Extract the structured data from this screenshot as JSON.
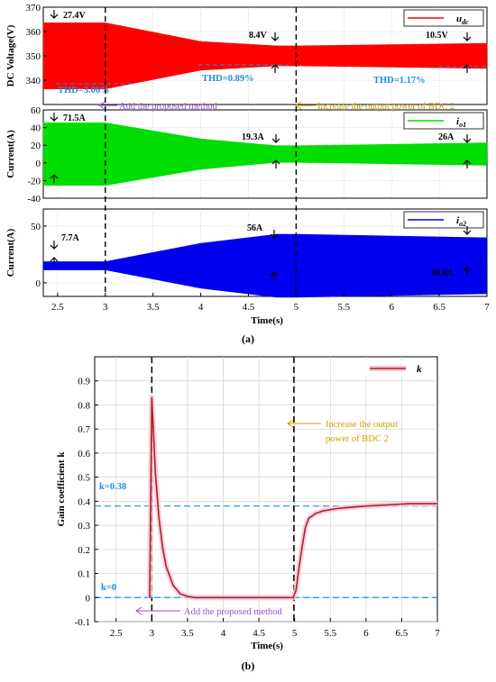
{
  "caption_a": "(a)",
  "caption_b": "(b)",
  "chart_data": [
    {
      "type": "line",
      "panel": "a-1",
      "ylabel": "DC Voltage(V)",
      "xlim": [
        2.35,
        7
      ],
      "ylim": [
        330,
        370
      ],
      "yticks": [
        340,
        350,
        360,
        370
      ],
      "legend": "u_dc",
      "legend_position": "top-right",
      "color": "#ff0000",
      "series": [
        {
          "name": "u_dc",
          "x": [
            2.35,
            3.0,
            4.0,
            4.8,
            5.0,
            7.0
          ],
          "center": [
            350,
            350,
            350,
            350,
            350,
            350
          ],
          "peak_to_peak": [
            27.4,
            27.4,
            12,
            8.4,
            8.4,
            10.5
          ]
        }
      ],
      "annotations": [
        "27.4V",
        "8.4V",
        "10.5V",
        "THD=3.06%",
        "THD=0.89%",
        "THD=1.17%"
      ]
    },
    {
      "type": "line",
      "panel": "a-2",
      "ylabel": "Current(A)",
      "xlim": [
        2.35,
        7
      ],
      "ylim": [
        -40,
        60
      ],
      "yticks": [
        -40,
        -20,
        0,
        20,
        40,
        60
      ],
      "legend": "i_o1",
      "legend_position": "top-right",
      "color": "#00dd00",
      "series": [
        {
          "name": "i_o1",
          "x": [
            2.35,
            3.0,
            4.0,
            4.8,
            5.0,
            7.0
          ],
          "center": [
            10,
            10,
            10,
            10,
            10,
            10
          ],
          "peak_to_peak": [
            71.5,
            71.5,
            35,
            19.3,
            19.3,
            26
          ]
        }
      ],
      "annotations": [
        "71.5A",
        "19.3A",
        "26A"
      ]
    },
    {
      "type": "line",
      "panel": "a-3",
      "ylabel": "Current(A)",
      "xlabel": "Time(s)",
      "xlim": [
        2.35,
        7
      ],
      "ylim": [
        -12,
        65
      ],
      "yticks": [
        0,
        50
      ],
      "xticks": [
        2.5,
        3,
        3.5,
        4,
        4.5,
        5,
        5.5,
        6,
        6.5,
        7
      ],
      "legend": "i_o2",
      "legend_position": "top-right",
      "color": "#0000ee",
      "series": [
        {
          "name": "i_o2",
          "x": [
            2.35,
            3.0,
            4.0,
            4.8,
            5.0,
            7.0
          ],
          "center": [
            15,
            15,
            15,
            15,
            15,
            15
          ],
          "peak_to_peak": [
            7.7,
            7.7,
            40,
            56,
            56,
            49.8
          ]
        }
      ],
      "annotations": [
        "7.7A",
        "56A",
        "49.8A"
      ]
    },
    {
      "type": "line",
      "panel": "b",
      "ylabel": "Gain coefficient k",
      "xlabel": "Time(s)",
      "xlim": [
        2.2,
        7
      ],
      "ylim": [
        -0.1,
        1.0
      ],
      "yticks": [
        -0.1,
        0,
        0.1,
        0.2,
        0.3,
        0.4,
        0.5,
        0.6,
        0.7,
        0.8,
        0.9
      ],
      "xticks": [
        2.5,
        3,
        3.5,
        4,
        4.5,
        5,
        5.5,
        6,
        6.5,
        7
      ],
      "legend": "k",
      "legend_position": "top-right",
      "grid": true,
      "series": [
        {
          "name": "k",
          "x": [
            2.97,
            3.0,
            3.05,
            3.1,
            3.15,
            3.2,
            3.3,
            3.4,
            3.5,
            3.6,
            3.8,
            4.0,
            4.5,
            4.98,
            5.02,
            5.06,
            5.1,
            5.15,
            5.2,
            5.3,
            5.4,
            5.6,
            5.8,
            6.0,
            6.3,
            6.6,
            7.0
          ],
          "y": [
            0.0,
            0.83,
            0.52,
            0.33,
            0.21,
            0.13,
            0.05,
            0.015,
            0.005,
            0.0,
            0.0,
            0.0,
            0.0,
            0.0,
            0.03,
            0.12,
            0.2,
            0.29,
            0.33,
            0.35,
            0.36,
            0.37,
            0.375,
            0.38,
            0.385,
            0.39,
            0.39
          ]
        }
      ],
      "annotations": [
        "k=0.38",
        "k=0"
      ],
      "reference_lines": [
        0.38,
        0
      ]
    }
  ],
  "events": {
    "add_method_a": "Add the proposed method",
    "increase_power_a": "Increase  the output power of BDC 2",
    "add_method_b": "Add the proposed method",
    "increase_power_b_line1": "Increase  the output",
    "increase_power_b_line2": "power of BDC 2"
  },
  "colors": {
    "red": "#ff0000",
    "green": "#00dd00",
    "blue": "#0000ee",
    "k_line": "#a0281e",
    "k_glow": "#ffc0dc",
    "ref_line": "#1f8fd8",
    "purple": "#9b4fd6",
    "gold": "#c8a000"
  }
}
